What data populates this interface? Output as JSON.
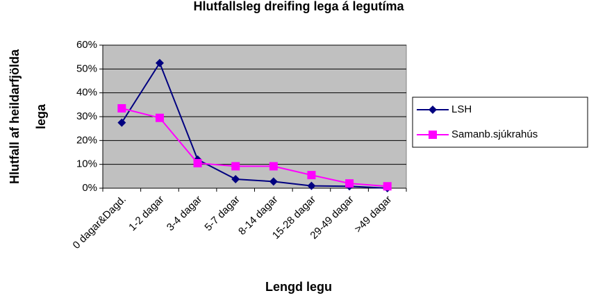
{
  "chart_data": {
    "type": "line",
    "title": "Hlutfallsleg dreifing lega á legutíma",
    "y_label": [
      "Hlutfall af heildarfjölda",
      "lega"
    ],
    "x_label": "Lengd legu",
    "categories": [
      "0 dagar&Dagd.",
      "1-2 dagar",
      "3-4 dagar",
      "5-7 dagar",
      "8-14 dagar",
      "15-28 dagar",
      "29-49 dagar",
      ">49 dagar"
    ],
    "series": [
      {
        "name": "LSH",
        "color": "#000080",
        "marker": "diamond",
        "values": [
          27.5,
          52.5,
          12,
          3.8,
          2.8,
          1,
          0.8,
          0
        ]
      },
      {
        "name": "Samanb.sjúkrahús",
        "color": "#ff00ff",
        "marker": "square",
        "values": [
          33.5,
          29.5,
          10.5,
          9.2,
          9.2,
          5.5,
          2,
          0.8
        ]
      }
    ],
    "ylim": [
      0,
      60
    ],
    "yticks": [
      {
        "value": 0,
        "label": "0%"
      },
      {
        "value": 10,
        "label": "10%"
      },
      {
        "value": 20,
        "label": "20%"
      },
      {
        "value": 30,
        "label": "30%"
      },
      {
        "value": 40,
        "label": "40%"
      },
      {
        "value": 50,
        "label": "50%"
      },
      {
        "value": 60,
        "label": "60%"
      }
    ],
    "grid": true,
    "legend": "right"
  }
}
